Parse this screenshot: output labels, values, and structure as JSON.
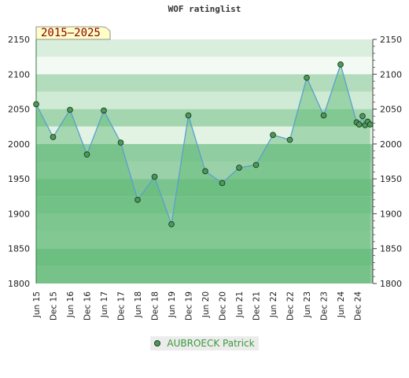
{
  "chart_data": {
    "type": "line",
    "title": "WOF ratinglist",
    "badge": "2015–2025",
    "ylim": [
      1800,
      2150
    ],
    "yticks": [
      1800,
      1850,
      1900,
      1950,
      2000,
      2050,
      2100,
      2150
    ],
    "categories": [
      "Jun 15",
      "Dec 15",
      "Jun 16",
      "Dec 16",
      "Jun 17",
      "Dec 17",
      "Jun 18",
      "Dec 18",
      "Jun 19",
      "Dec 19",
      "Jun 20",
      "Dec 20",
      "Jun 21",
      "Dec 21",
      "Jun 22",
      "Dec 22",
      "Jun 23",
      "Dec 23",
      "Jun 24",
      "Dec 24"
    ],
    "series": [
      {
        "name": "AUBROECK Patrick",
        "color": "#4a9a5a",
        "points": [
          {
            "x": 0,
            "y": 2057
          },
          {
            "x": 1,
            "y": 2010
          },
          {
            "x": 2,
            "y": 2049
          },
          {
            "x": 3,
            "y": 1985
          },
          {
            "x": 4,
            "y": 2048
          },
          {
            "x": 5,
            "y": 2002
          },
          {
            "x": 6,
            "y": 1920
          },
          {
            "x": 7,
            "y": 1953
          },
          {
            "x": 8,
            "y": 1885
          },
          {
            "x": 9,
            "y": 2041
          },
          {
            "x": 10,
            "y": 1961
          },
          {
            "x": 11,
            "y": 1944
          },
          {
            "x": 12,
            "y": 1966
          },
          {
            "x": 13,
            "y": 1970
          },
          {
            "x": 14,
            "y": 2013
          },
          {
            "x": 15,
            "y": 2006
          },
          {
            "x": 16,
            "y": 2095
          },
          {
            "x": 17,
            "y": 2041
          },
          {
            "x": 18,
            "y": 2114
          },
          {
            "x": 18.95,
            "y": 2031
          },
          {
            "x": 19.1,
            "y": 2028
          },
          {
            "x": 19.3,
            "y": 2040
          },
          {
            "x": 19.45,
            "y": 2027
          },
          {
            "x": 19.6,
            "y": 2032
          },
          {
            "x": 19.75,
            "y": 2028
          }
        ]
      }
    ],
    "legend": "bottom-center",
    "grid": true
  }
}
